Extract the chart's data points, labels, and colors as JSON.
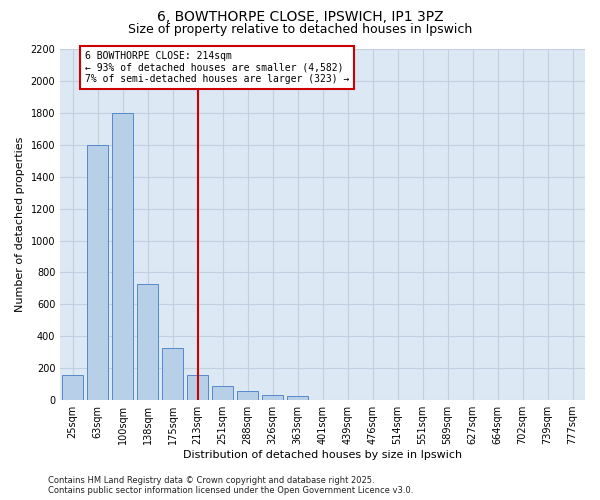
{
  "title": "6, BOWTHORPE CLOSE, IPSWICH, IP1 3PZ",
  "subtitle": "Size of property relative to detached houses in Ipswich",
  "xlabel": "Distribution of detached houses by size in Ipswich",
  "ylabel": "Number of detached properties",
  "categories": [
    "25sqm",
    "63sqm",
    "100sqm",
    "138sqm",
    "175sqm",
    "213sqm",
    "251sqm",
    "288sqm",
    "326sqm",
    "363sqm",
    "401sqm",
    "439sqm",
    "476sqm",
    "514sqm",
    "551sqm",
    "589sqm",
    "627sqm",
    "664sqm",
    "702sqm",
    "739sqm",
    "777sqm"
  ],
  "values": [
    160,
    1600,
    1800,
    725,
    325,
    160,
    90,
    55,
    30,
    25,
    0,
    0,
    0,
    0,
    0,
    0,
    0,
    0,
    0,
    0,
    0
  ],
  "bar_color": "#b8cfe8",
  "bar_edge_color": "#5588cc",
  "highlight_index": 5,
  "highlight_line_color": "#cc0000",
  "ylim": [
    0,
    2200
  ],
  "yticks": [
    0,
    200,
    400,
    600,
    800,
    1000,
    1200,
    1400,
    1600,
    1800,
    2000,
    2200
  ],
  "annotation_line1": "6 BOWTHORPE CLOSE: 214sqm",
  "annotation_line2": "← 93% of detached houses are smaller (4,582)",
  "annotation_line3": "7% of semi-detached houses are larger (323) →",
  "annotation_box_color": "#cc0000",
  "grid_color": "#c0d0e0",
  "background_color": "#dce8f4",
  "footnote": "Contains HM Land Registry data © Crown copyright and database right 2025.\nContains public sector information licensed under the Open Government Licence v3.0.",
  "title_fontsize": 10,
  "subtitle_fontsize": 9,
  "axis_label_fontsize": 8,
  "tick_fontsize": 7
}
